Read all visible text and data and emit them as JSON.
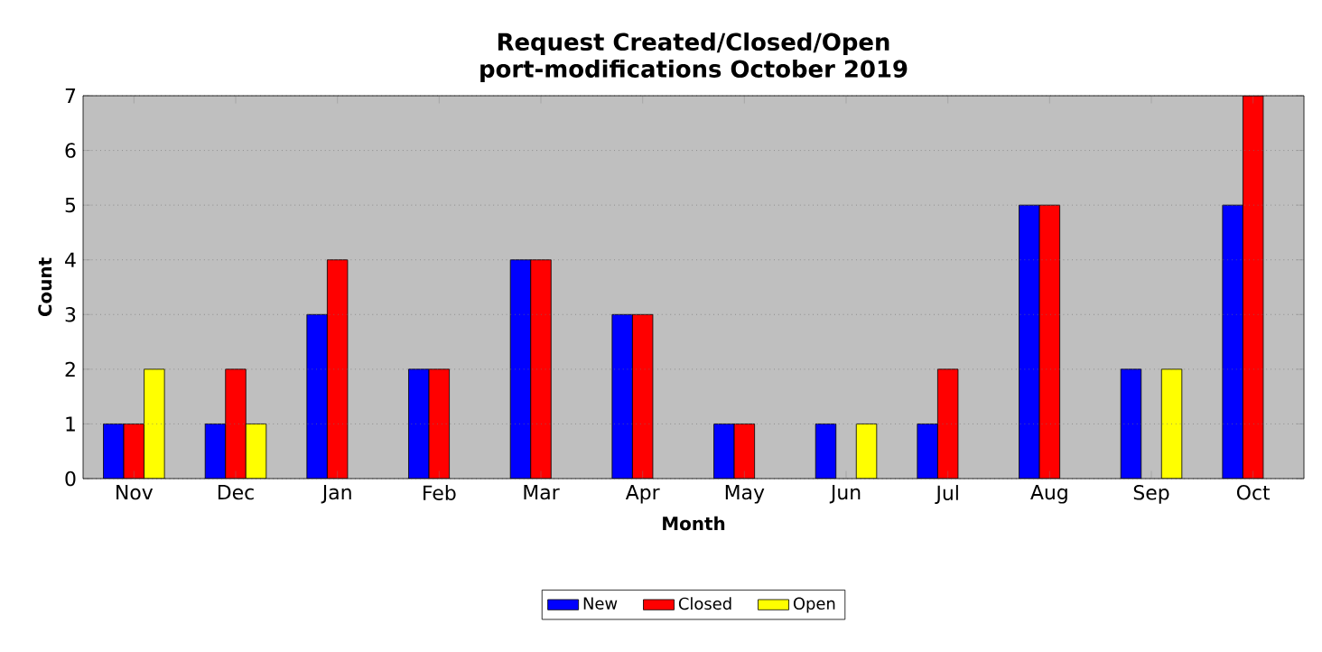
{
  "chart_data": {
    "type": "bar",
    "title": "Request Created/Closed/Open",
    "subtitle": "port-modifications October 2019",
    "xlabel": "Month",
    "ylabel": "Count",
    "categories": [
      "Nov",
      "Dec",
      "Jan",
      "Feb",
      "Mar",
      "Apr",
      "May",
      "Jun",
      "Jul",
      "Aug",
      "Sep",
      "Oct"
    ],
    "series": [
      {
        "name": "New",
        "color": "#0000ff",
        "values": [
          1,
          1,
          3,
          2,
          4,
          3,
          1,
          1,
          1,
          5,
          2,
          5
        ]
      },
      {
        "name": "Closed",
        "color": "#ff0000",
        "values": [
          1,
          2,
          4,
          2,
          4,
          3,
          1,
          0,
          2,
          5,
          0,
          7
        ]
      },
      {
        "name": "Open",
        "color": "#ffff00",
        "values": [
          2,
          1,
          0,
          0,
          0,
          0,
          0,
          1,
          0,
          0,
          2,
          0
        ]
      }
    ],
    "ylim": [
      0,
      7
    ],
    "yticks": [
      0,
      1,
      2,
      3,
      4,
      5,
      6,
      7
    ],
    "grid": "y",
    "legend": "bottom"
  }
}
